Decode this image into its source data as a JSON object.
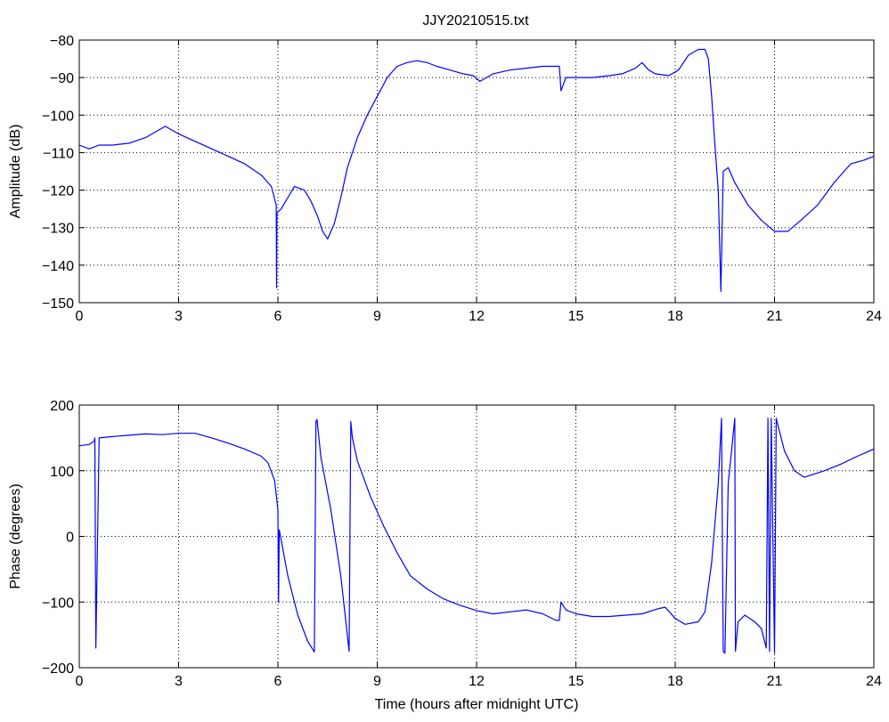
{
  "figure_title": "JJY20210515.txt",
  "colors": {
    "line": "#0000ff",
    "axes": "#000000",
    "grid": "#000000",
    "background": "#ffffff"
  },
  "chart_data": [
    {
      "type": "line",
      "title": "JJY20210515.txt",
      "xlabel": "",
      "ylabel": "Amplitude (dB)",
      "xlim": [
        0,
        24
      ],
      "ylim": [
        -150,
        -80
      ],
      "xticks": [
        0,
        3,
        6,
        9,
        12,
        15,
        18,
        21,
        24
      ],
      "yticks": [
        -150,
        -140,
        -130,
        -120,
        -110,
        -100,
        -90,
        -80
      ],
      "xtick_labels": [
        "0",
        "3",
        "6",
        "9",
        "12",
        "15",
        "18",
        "21",
        "24"
      ],
      "ytick_labels": [
        "−150",
        "−140",
        "−130",
        "−120",
        "−110",
        "−100",
        "−90",
        "−80"
      ],
      "grid": true,
      "series": [
        {
          "color": "#0000ff",
          "x": [
            0,
            0.3,
            0.6,
            1,
            1.5,
            2,
            2.4,
            2.6,
            3,
            3.5,
            4,
            4.5,
            5,
            5.5,
            5.8,
            5.95,
            5.96,
            5.97,
            6.1,
            6.3,
            6.5,
            6.8,
            7.0,
            7.2,
            7.35,
            7.5,
            7.7,
            7.9,
            8.1,
            8.4,
            8.7,
            9.0,
            9.3,
            9.6,
            9.9,
            10.2,
            10.5,
            10.8,
            11.2,
            11.6,
            11.9,
            12.1,
            12.5,
            13,
            13.5,
            14,
            14.5,
            14.55,
            14.7,
            15,
            15.5,
            16,
            16.4,
            16.8,
            17.0,
            17.2,
            17.4,
            17.8,
            18.1,
            18.4,
            18.7,
            18.9,
            19.0,
            19.1,
            19.2,
            19.3,
            19.38,
            19.45,
            19.6,
            19.8,
            20.2,
            20.6,
            21.0,
            21.4,
            21.8,
            22.3,
            22.8,
            23.3,
            23.7,
            24
          ],
          "y": [
            -108,
            -109,
            -108,
            -108,
            -107.5,
            -106,
            -104,
            -103,
            -105,
            -107,
            -109,
            -111,
            -113,
            -116,
            -119,
            -124,
            -146,
            -126,
            -125,
            -122,
            -119,
            -120,
            -123,
            -127,
            -131,
            -133,
            -129,
            -122,
            -114,
            -106,
            -100,
            -95,
            -90,
            -87,
            -86,
            -85.5,
            -86,
            -87,
            -88,
            -89,
            -89.5,
            -91,
            -89,
            -88,
            -87.5,
            -87,
            -87,
            -93.5,
            -90,
            -90,
            -90,
            -89.5,
            -89,
            -87.5,
            -86,
            -88,
            -89,
            -89.5,
            -88,
            -84,
            -82.5,
            -82.5,
            -85,
            -95,
            -108,
            -120,
            -147,
            -115,
            -114,
            -118,
            -124,
            -128,
            -131,
            -131,
            -128,
            -124,
            -118,
            -113,
            -112,
            -111
          ]
        }
      ]
    },
    {
      "type": "line",
      "title": "",
      "xlabel": "Time (hours after midnight UTC)",
      "ylabel": "Phase (degrees)",
      "xlim": [
        0,
        24
      ],
      "ylim": [
        -200,
        200
      ],
      "xticks": [
        0,
        3,
        6,
        9,
        12,
        15,
        18,
        21,
        24
      ],
      "yticks": [
        -200,
        -100,
        0,
        100,
        200
      ],
      "xtick_labels": [
        "0",
        "3",
        "6",
        "9",
        "12",
        "15",
        "18",
        "21",
        "24"
      ],
      "ytick_labels": [
        "−200",
        "−100",
        "0",
        "100",
        "200"
      ],
      "grid": true,
      "series": [
        {
          "color": "#0000ff",
          "x": [
            0,
            0.3,
            0.45,
            0.47,
            0.5,
            0.6,
            1,
            1.5,
            2,
            2.5,
            3,
            3.5,
            4,
            4.5,
            5,
            5.5,
            5.7,
            5.9,
            6.0,
            6.02,
            6.04,
            6.3,
            6.6,
            6.9,
            7.1,
            7.15,
            7.18,
            7.3,
            7.6,
            7.9,
            8.15,
            8.2,
            8.25,
            8.4,
            8.8,
            9.2,
            9.6,
            10,
            10.5,
            11,
            11.5,
            12,
            12.5,
            13,
            13.5,
            14,
            14.4,
            14.5,
            14.55,
            14.7,
            15,
            15.5,
            16,
            16.5,
            17,
            17.5,
            17.7,
            18,
            18.3,
            18.7,
            18.9,
            19.1,
            19.3,
            19.4,
            19.45,
            19.5,
            19.6,
            19.8,
            19.82,
            19.9,
            20.1,
            20.4,
            20.6,
            20.75,
            20.8,
            20.85,
            20.9,
            21.0,
            21.05,
            21.1,
            21.3,
            21.6,
            21.9,
            22.2,
            22.5,
            23,
            23.5,
            24
          ],
          "y": [
            138,
            140,
            145,
            150,
            -170,
            150,
            152,
            154,
            156,
            155,
            157,
            157,
            150,
            142,
            133,
            122,
            112,
            85,
            40,
            -100,
            10,
            -60,
            -120,
            -160,
            -176,
            175,
            178,
            120,
            40,
            -60,
            -175,
            175,
            150,
            115,
            60,
            15,
            -25,
            -60,
            -80,
            -95,
            -105,
            -113,
            -118,
            -115,
            -112,
            -118,
            -128,
            -128,
            -100,
            -112,
            -118,
            -122,
            -122,
            -120,
            -118,
            -110,
            -108,
            -125,
            -134,
            -130,
            -115,
            -40,
            80,
            180,
            -175,
            -178,
            80,
            180,
            -175,
            -130,
            -120,
            -130,
            -140,
            -170,
            180,
            -175,
            180,
            -178,
            180,
            170,
            130,
            100,
            90,
            95,
            100,
            110,
            122,
            133
          ]
        }
      ]
    }
  ]
}
